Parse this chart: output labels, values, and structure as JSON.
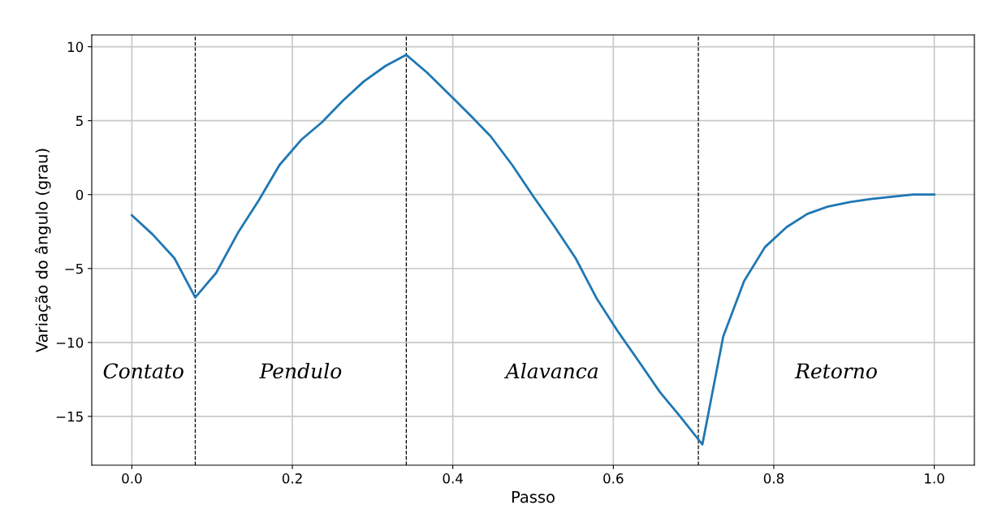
{
  "chart_data": {
    "type": "line",
    "xlabel": "Passo",
    "ylabel": "Variação do ângulo (grau)",
    "x": [
      0,
      0.026,
      0.053,
      0.079,
      0.105,
      0.132,
      0.158,
      0.184,
      0.211,
      0.237,
      0.263,
      0.289,
      0.316,
      0.342,
      0.368,
      0.395,
      0.421,
      0.447,
      0.474,
      0.5,
      0.526,
      0.553,
      0.579,
      0.605,
      0.632,
      0.658,
      0.684,
      0.711,
      0.737,
      0.763,
      0.789,
      0.816,
      0.842,
      0.868,
      0.895,
      0.921,
      0.947,
      0.974,
      1.0
    ],
    "series": [
      {
        "color": "#1f77b4",
        "values": [
          -1.4,
          -2.7,
          -4.3,
          -6.95,
          -5.3,
          -2.6,
          -0.4,
          2.0,
          3.7,
          4.9,
          6.35,
          7.65,
          8.7,
          9.45,
          8.25,
          6.8,
          5.4,
          3.95,
          2.0,
          -0.1,
          -2.1,
          -4.3,
          -7.0,
          -9.2,
          -11.3,
          -13.35,
          -15.05,
          -16.9,
          -9.6,
          -5.85,
          -3.55,
          -2.2,
          -1.3,
          -0.8,
          -0.5,
          -0.3,
          -0.15,
          0,
          0
        ]
      }
    ],
    "xlim": [
      -0.05,
      1.05
    ],
    "ylim": [
      -18.3,
      10.8
    ],
    "xticks": [
      {
        "value": 0,
        "label": "0.0"
      },
      {
        "value": 0.2,
        "label": "0.2"
      },
      {
        "value": 0.4,
        "label": "0.4"
      },
      {
        "value": 0.6,
        "label": "0.6"
      },
      {
        "value": 0.8,
        "label": "0.8"
      },
      {
        "value": 1.0,
        "label": "1.0"
      }
    ],
    "yticks": [
      {
        "value": -15,
        "label": "−15"
      },
      {
        "value": -10,
        "label": "−10"
      },
      {
        "value": -5,
        "label": "−5"
      },
      0,
      5,
      10
    ],
    "ref_lines": [
      {
        "axis": "x",
        "value": 0.079,
        "color": "#000000",
        "line_style": "dashed"
      },
      {
        "axis": "x",
        "value": 0.342,
        "color": "#000000",
        "line_style": "dashed"
      },
      {
        "axis": "x",
        "value": 0.706,
        "color": "#000000",
        "line_style": "dashed"
      }
    ],
    "annotations": [
      "Contato",
      "Pendulo",
      "Alavanca",
      "Retorno"
    ],
    "grid": true,
    "marker": "none",
    "line_style": "solid"
  }
}
